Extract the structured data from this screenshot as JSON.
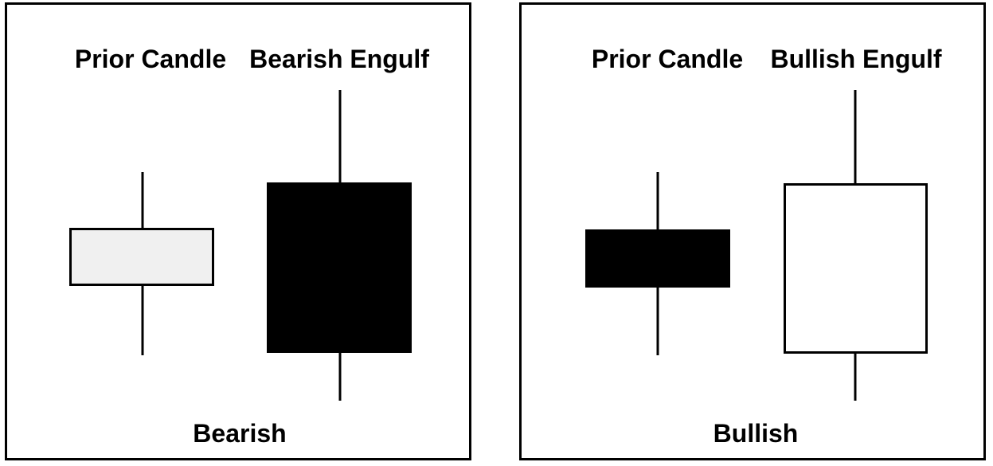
{
  "bearish": {
    "prior_label": "Prior Candle",
    "engulf_label": "Bearish Engulf",
    "caption": "Bearish",
    "prior_fill": "#f0f0f0",
    "engulf_fill": "#000000"
  },
  "bullish": {
    "prior_label": "Prior Candle",
    "engulf_label": "Bullish Engulf",
    "caption": "Bullish",
    "prior_fill": "#000000",
    "engulf_fill": "#ffffff"
  }
}
